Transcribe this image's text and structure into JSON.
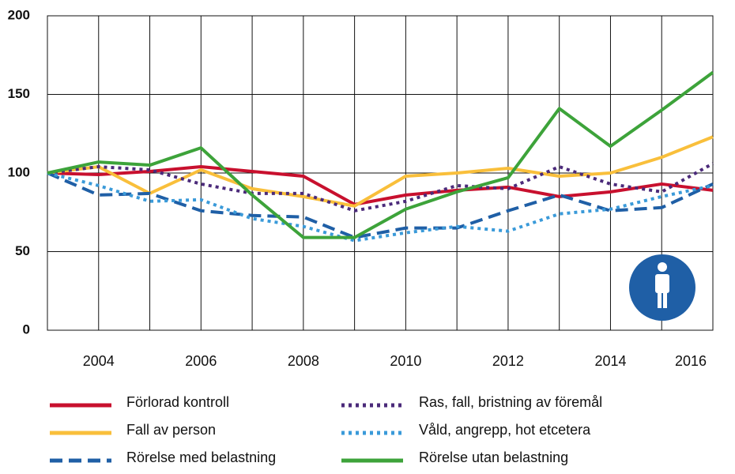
{
  "chart_data": {
    "type": "line",
    "categories": [
      null,
      "2004",
      null,
      "2006",
      null,
      "2008",
      null,
      "2010",
      null,
      "2012",
      null,
      "2014",
      null,
      "2016"
    ],
    "ylim": [
      0,
      200
    ],
    "yticks": [
      0,
      50,
      100,
      150,
      200
    ],
    "grid": true,
    "series": [
      {
        "name": "Förlorad kontroll",
        "color": "#c8102e",
        "style": "solid",
        "values": [
          100,
          99,
          101,
          104,
          101,
          98,
          80,
          86,
          89,
          91,
          85,
          88,
          93,
          89
        ]
      },
      {
        "name": "Fall av person",
        "color": "#f9bf3b",
        "style": "solid",
        "values": [
          100,
          104,
          87,
          102,
          90,
          85,
          79,
          98,
          100,
          103,
          98,
          100,
          110,
          123
        ]
      },
      {
        "name": "Rörelse med belastning",
        "color": "#1f5fa6",
        "style": "dashed",
        "values": [
          100,
          86,
          87,
          76,
          73,
          72,
          59,
          65,
          65,
          76,
          86,
          76,
          78,
          93
        ]
      },
      {
        "name": "Ras, fall, bristning av föremål",
        "color": "#4b2a7a",
        "style": "dotted",
        "values": [
          100,
          104,
          102,
          93,
          87,
          87,
          76,
          82,
          92,
          90,
          104,
          93,
          88,
          106
        ]
      },
      {
        "name": "Våld, angrepp, hot etcetera",
        "color": "#3a9ad9",
        "style": "dotted",
        "values": [
          100,
          92,
          82,
          83,
          71,
          66,
          57,
          62,
          66,
          63,
          74,
          77,
          85,
          92
        ]
      },
      {
        "name": "Rörelse utan belastning",
        "color": "#3da33a",
        "style": "solid",
        "values": [
          100,
          107,
          105,
          116,
          86,
          59,
          59,
          77,
          88,
          97,
          141,
          117,
          140,
          164
        ]
      }
    ]
  }
}
